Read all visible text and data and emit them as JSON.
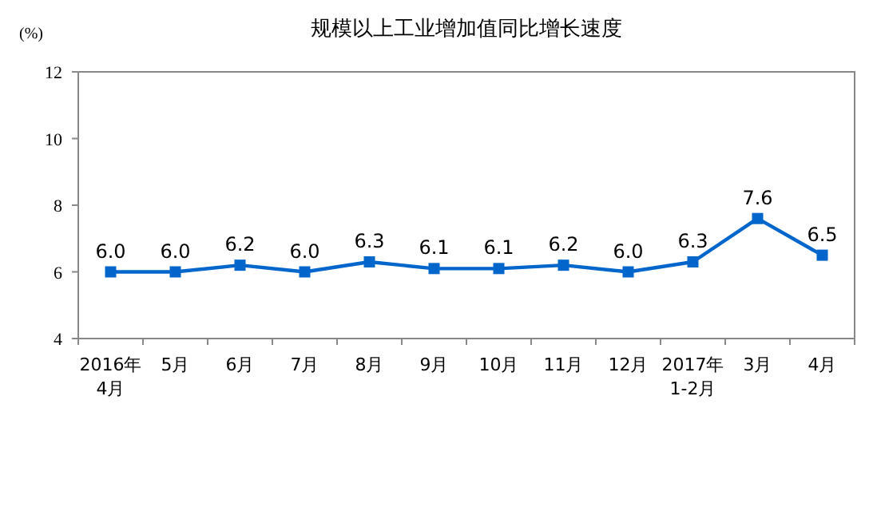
{
  "chart_data": {
    "type": "line",
    "title": "规模以上工业增加值同比增长速度",
    "ylabel": "(%)",
    "categories": [
      "2016年\n4月",
      "5月",
      "6月",
      "7月",
      "8月",
      "9月",
      "10月",
      "11月",
      "12月",
      "2017年\n1-2月",
      "3月",
      "4月"
    ],
    "series": [
      {
        "color": "#0066cc",
        "values": [
          6.0,
          6.0,
          6.2,
          6.0,
          6.3,
          6.1,
          6.1,
          6.2,
          6.0,
          6.3,
          7.6,
          6.5
        ],
        "value_labels": [
          "6.0",
          "6.0",
          "6.2",
          "6.0",
          "6.3",
          "6.1",
          "6.1",
          "6.2",
          "6.0",
          "6.3",
          "7.6",
          "6.5"
        ]
      }
    ],
    "ylim": [
      4,
      12
    ],
    "yticks": [
      4,
      6,
      8,
      10,
      12
    ],
    "grid": false,
    "marker": "square",
    "line_style": "solid"
  }
}
